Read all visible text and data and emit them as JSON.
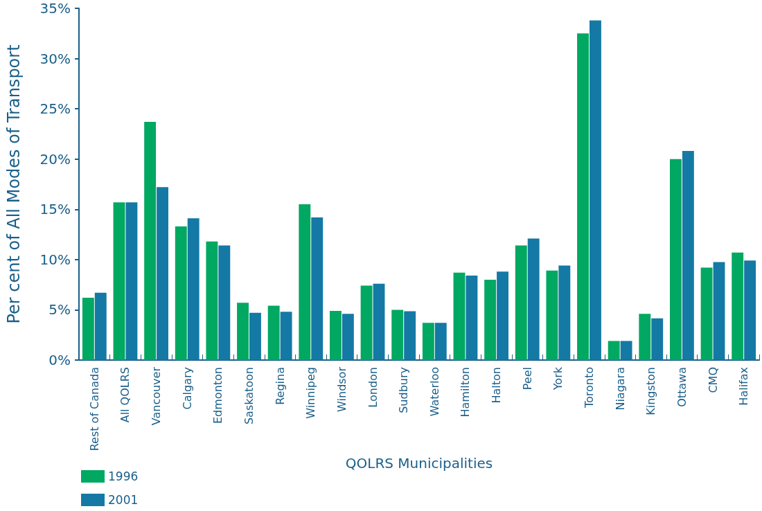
{
  "chart_data": {
    "type": "bar",
    "xlabel": "QOLRS Municipalities",
    "ylabel": "Per cent of All Modes of Transport",
    "categories": [
      "Rest of Canada",
      "All QOLRS",
      "Vancouver",
      "Calgary",
      "Edmonton",
      "Saskatoon",
      "Regina",
      "Winnipeg",
      "Windsor",
      "London",
      "Sudbury",
      "Waterloo",
      "Hamilton",
      "Halton",
      "Peel",
      "York",
      "Toronto",
      "Niagara",
      "Kingston",
      "Ottawa",
      "CMQ",
      "Halifax"
    ],
    "series": [
      {
        "name": "1996",
        "color": "#00a862",
        "values": [
          6.2,
          15.7,
          23.7,
          13.3,
          11.8,
          5.7,
          5.4,
          15.5,
          4.9,
          7.4,
          5.0,
          3.7,
          8.7,
          8.0,
          11.4,
          8.9,
          32.5,
          1.9,
          4.6,
          20.0,
          9.2,
          10.7
        ]
      },
      {
        "name": "2001",
        "color": "#1479a5",
        "values": [
          6.7,
          15.7,
          17.2,
          14.1,
          11.4,
          4.7,
          4.8,
          14.2,
          4.6,
          7.6,
          4.85,
          3.7,
          8.4,
          8.8,
          12.1,
          9.4,
          33.8,
          1.9,
          4.15,
          20.8,
          9.75,
          9.9
        ]
      }
    ],
    "ylim": [
      0,
      35
    ],
    "yticks": [
      {
        "value": 0,
        "label": "0%"
      },
      {
        "value": 5,
        "label": "5%"
      },
      {
        "value": 10,
        "label": "10%"
      },
      {
        "value": 15,
        "label": "15%"
      },
      {
        "value": 20,
        "label": "20%"
      },
      {
        "value": 25,
        "label": "25%"
      },
      {
        "value": 30,
        "label": "30%"
      },
      {
        "value": 35,
        "label": "35%"
      }
    ],
    "grid": false,
    "legend": "bottom left"
  }
}
